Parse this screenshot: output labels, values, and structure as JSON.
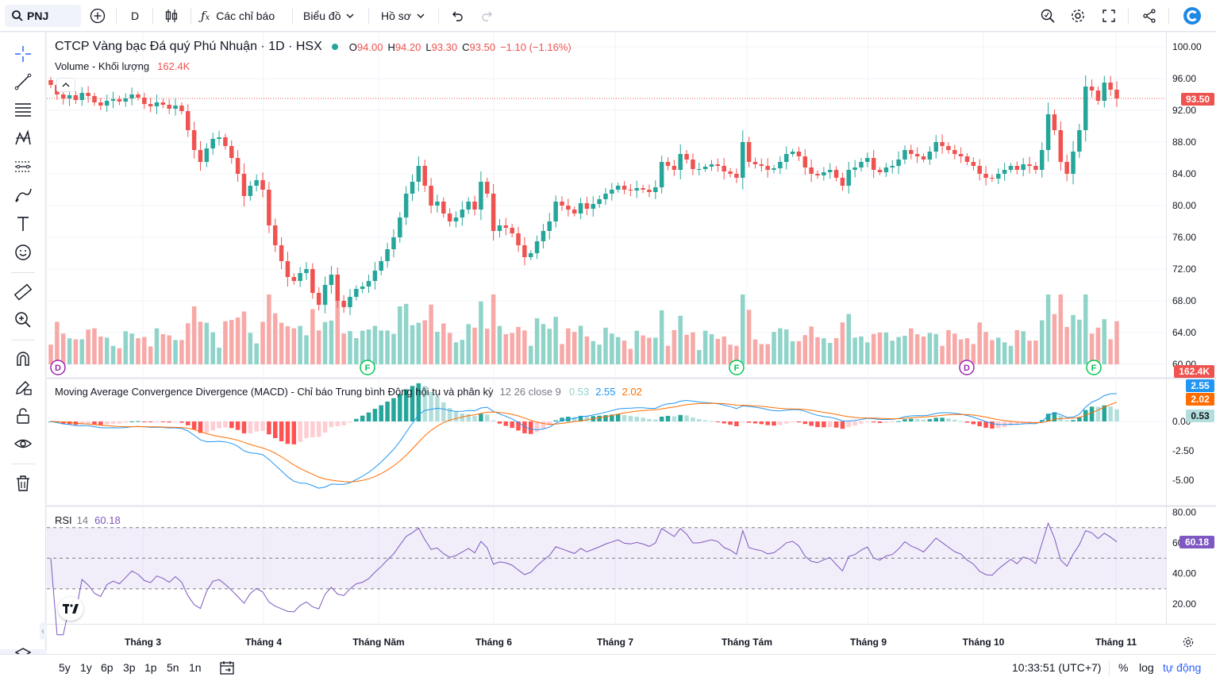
{
  "topbar": {
    "symbol": "PNJ",
    "interval": "D",
    "indicators_label": "Các chỉ báo",
    "chart_type_label": "Biểu đồ",
    "profile_label": "Hồ sơ"
  },
  "legend": {
    "title": "CTCP Vàng bạc Đá quý Phú Nhuận · 1D · HSX",
    "o_label": "O",
    "o_val": "94.00",
    "h_label": "H",
    "h_val": "94.20",
    "l_label": "L",
    "l_val": "93.30",
    "c_label": "C",
    "c_val": "93.50",
    "change": "−1.10 (−1.16%)",
    "volume_label": "Volume - Khối lượng",
    "volume_val": "162.4K",
    "macd_label": "Moving Average Convergence Divergence (MACD) - Chỉ báo Trung bình Động hội tụ và phân kỳ",
    "macd_params": "12 26 close 9",
    "macd_hist_val": "0.53",
    "macd_line_val": "2.55",
    "macd_signal_val": "2.02",
    "rsi_label": "RSI",
    "rsi_param": "14",
    "rsi_val": "60.18"
  },
  "price_tags": {
    "last": "93.50",
    "volume": "162.4K",
    "macd": "2.55",
    "signal": "2.02",
    "hist": "0.53",
    "rsi": "60.18"
  },
  "bottombar": {
    "ranges": [
      "5y",
      "1y",
      "6p",
      "3p",
      "1p",
      "5n",
      "1n"
    ],
    "time": "10:33:51 (UTC+7)",
    "percent": "%",
    "log": "log",
    "auto": "tự động"
  },
  "colors": {
    "up": "#26a69a",
    "down": "#ef5350",
    "vol_up": "#8fd3c9",
    "vol_down": "#f7a9a7",
    "macd": "#2962ff",
    "signal": "#ff6d00",
    "rsi": "#7e57c2",
    "accent": "#2962ff"
  },
  "chart_data": {
    "type": "candlestick",
    "price_axis": [
      100,
      96,
      92,
      88,
      84,
      80,
      76,
      72,
      68,
      64,
      60
    ],
    "macd_axis": [
      "0.00",
      "-2.50",
      "-5.00"
    ],
    "rsi_axis": [
      80,
      60,
      40,
      20
    ],
    "rsi_levels": [
      70,
      50,
      30
    ],
    "months": [
      "Tháng 3",
      "Tháng 4",
      "Tháng Năm",
      "Tháng 6",
      "Tháng 7",
      "Tháng Tám",
      "Tháng 9",
      "Tháng 10",
      "Tháng 11"
    ],
    "events": [
      "D",
      "F",
      "F",
      "D",
      "F"
    ],
    "closes": [
      95.2,
      94.0,
      93.5,
      93.9,
      93.3,
      94.2,
      93.8,
      93.0,
      92.6,
      93.2,
      93.4,
      93.1,
      93.5,
      94.0,
      93.6,
      92.8,
      92.5,
      93.0,
      92.7,
      92.2,
      92.6,
      91.9,
      89.5,
      87.0,
      85.5,
      87.2,
      88.4,
      88.6,
      87.5,
      86.0,
      84.0,
      81.2,
      82.5,
      83.2,
      82.0,
      77.5,
      75.0,
      73.0,
      71.0,
      70.5,
      71.5,
      72.0,
      69.0,
      67.5,
      70.0,
      71.3,
      68.0,
      67.2,
      68.5,
      69.5,
      69.8,
      70.5,
      71.8,
      73.0,
      74.5,
      76.0,
      78.5,
      81.5,
      83.0,
      85.0,
      82.5,
      80.0,
      80.5,
      79.0,
      78.0,
      78.5,
      79.5,
      80.5,
      79.5,
      83.0,
      81.5,
      76.8,
      77.5,
      77.2,
      76.5,
      75.0,
      73.5,
      74.0,
      75.5,
      76.8,
      78.0,
      80.5,
      80.0,
      79.5,
      79.0,
      80.3,
      79.6,
      80.2,
      80.8,
      81.5,
      82.0,
      82.5,
      82.0,
      81.9,
      82.2,
      82.0,
      81.7,
      82.3,
      85.5,
      85.0,
      84.5,
      86.5,
      85.8,
      84.6,
      84.6,
      84.9,
      85.2,
      85.0,
      84.3,
      84.0,
      83.5,
      88.0,
      85.5,
      85.2,
      85.0,
      84.5,
      84.7,
      85.5,
      86.5,
      86.8,
      86.2,
      84.8,
      84.0,
      83.8,
      84.2,
      84.5,
      83.5,
      82.5,
      84.5,
      84.8,
      85.5,
      86.0,
      84.5,
      84.2,
      84.8,
      85.0,
      85.8,
      87.0,
      86.5,
      86.2,
      85.8,
      86.8,
      88.0,
      87.5,
      87.0,
      86.5,
      86.2,
      85.5,
      85.0,
      84.0,
      83.5,
      83.4,
      84.0,
      84.5,
      85.0,
      84.5,
      85.2,
      85.0,
      84.5,
      87.0,
      91.5,
      89.5,
      85.5,
      84.0,
      86.8,
      89.5,
      95.0,
      94.5,
      93.2,
      95.5,
      94.6,
      93.5
    ]
  }
}
